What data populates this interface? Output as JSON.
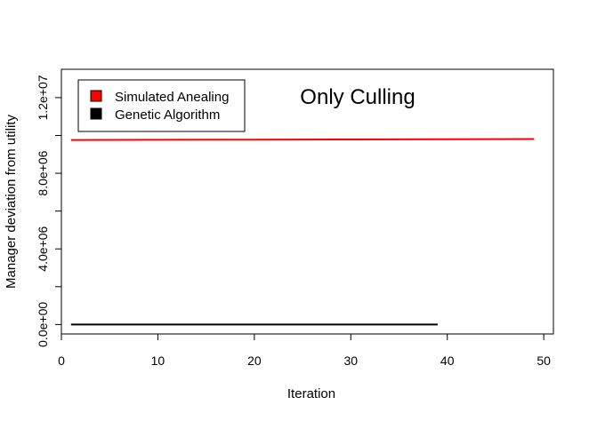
{
  "chart_data": {
    "type": "line",
    "title": "",
    "annotation": "Only Culling",
    "xlabel": "Iteration",
    "ylabel": "Manager deviation from utility",
    "xlim": [
      0,
      51
    ],
    "ylim": [
      -500000,
      13500000
    ],
    "xticks": [
      0,
      10,
      20,
      30,
      40,
      50
    ],
    "xtick_labels": [
      "0",
      "10",
      "20",
      "30",
      "40",
      "50"
    ],
    "yticks": [
      0,
      4000000,
      8000000,
      12000000
    ],
    "ytick_labels": [
      "0.0e+00",
      "4.0e+06",
      "8.0e+06",
      "1.2e+07"
    ],
    "yminor": [
      2000000,
      6000000,
      10000000
    ],
    "grid": false,
    "legend_position": "top-left",
    "series": [
      {
        "name": "Simulated Anealing",
        "color": "#ff0000",
        "x": [
          1,
          10,
          20,
          30,
          40,
          49
        ],
        "y": [
          9760000,
          9770000,
          9780000,
          9790000,
          9800000,
          9810000
        ]
      },
      {
        "name": "Genetic Algorithm",
        "color": "#000000",
        "x": [
          1,
          10,
          20,
          30,
          39
        ],
        "y": [
          0,
          0,
          0,
          0,
          0
        ]
      }
    ]
  }
}
